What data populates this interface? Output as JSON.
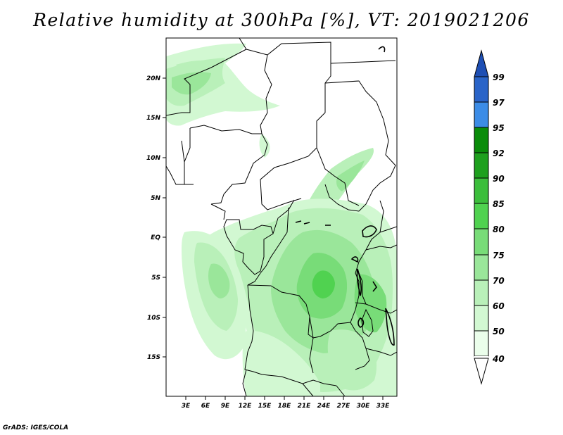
{
  "title": "Relative humidity at 300hPa [%], VT: 2019021206",
  "credit": "GrADS: IGES/COLA",
  "map": {
    "variable": "Relative humidity",
    "level": "300hPa",
    "units": "%",
    "valid_time": "2019021206",
    "lat_labels": [
      "20N",
      "15N",
      "10N",
      "5N",
      "EQ",
      "5S",
      "10S",
      "15S"
    ],
    "lat_values": [
      20,
      15,
      10,
      5,
      0,
      -5,
      -10,
      -15
    ],
    "lon_labels": [
      "3E",
      "6E",
      "9E",
      "12E",
      "15E",
      "18E",
      "21E",
      "24E",
      "27E",
      "30E",
      "33E"
    ],
    "lon_values": [
      3,
      6,
      9,
      12,
      15,
      18,
      21,
      24,
      27,
      30,
      33
    ],
    "lon_range": [
      0,
      35
    ],
    "lat_range": [
      -20,
      25
    ]
  },
  "legend": {
    "levels": [
      "99",
      "97",
      "95",
      "92",
      "90",
      "85",
      "80",
      "75",
      "70",
      "60",
      "50",
      "40"
    ],
    "colors": [
      "#2a64c8",
      "#3c8ce6",
      "#55a5f0",
      "#0a8c0a",
      "#1ea01e",
      "#3cbe3c",
      "#50d250",
      "#78dc78",
      "#9ae69a",
      "#b9f0b9",
      "#d2f8d2",
      "#ebfeeb"
    ],
    "top_color": "#1e4fb4"
  }
}
